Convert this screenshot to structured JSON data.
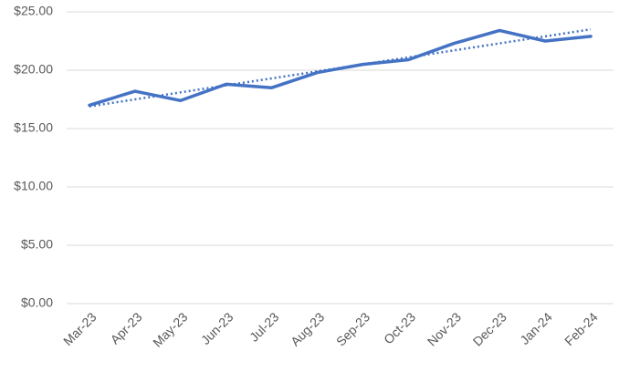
{
  "chart_data": {
    "type": "line",
    "categories": [
      "Mar-23",
      "Apr-23",
      "May-23",
      "Jun-23",
      "Jul-23",
      "Aug-23",
      "Sep-23",
      "Oct-23",
      "Nov-23",
      "Dec-23",
      "Jan-24",
      "Feb-24"
    ],
    "series": [
      {
        "color": "#4472c4",
        "style": "solid",
        "values": [
          17.0,
          18.2,
          17.4,
          18.8,
          18.5,
          19.8,
          20.5,
          20.9,
          22.3,
          23.4,
          22.5,
          22.9
        ]
      },
      {
        "color": "#4472c4",
        "style": "dotted",
        "values": [
          16.9,
          17.5,
          18.1,
          18.7,
          19.3,
          19.9,
          20.5,
          21.1,
          21.7,
          22.3,
          22.9,
          23.5
        ]
      }
    ],
    "ylim": [
      0,
      25
    ],
    "yticks": [
      {
        "value": 0,
        "label": "$0.00"
      },
      {
        "value": 5,
        "label": "$5.00"
      },
      {
        "value": 10,
        "label": "$10.00"
      },
      {
        "value": 15,
        "label": "$15.00"
      },
      {
        "value": 20,
        "label": "$20.00"
      },
      {
        "value": 25,
        "label": "$25.00"
      }
    ],
    "grid": true
  }
}
